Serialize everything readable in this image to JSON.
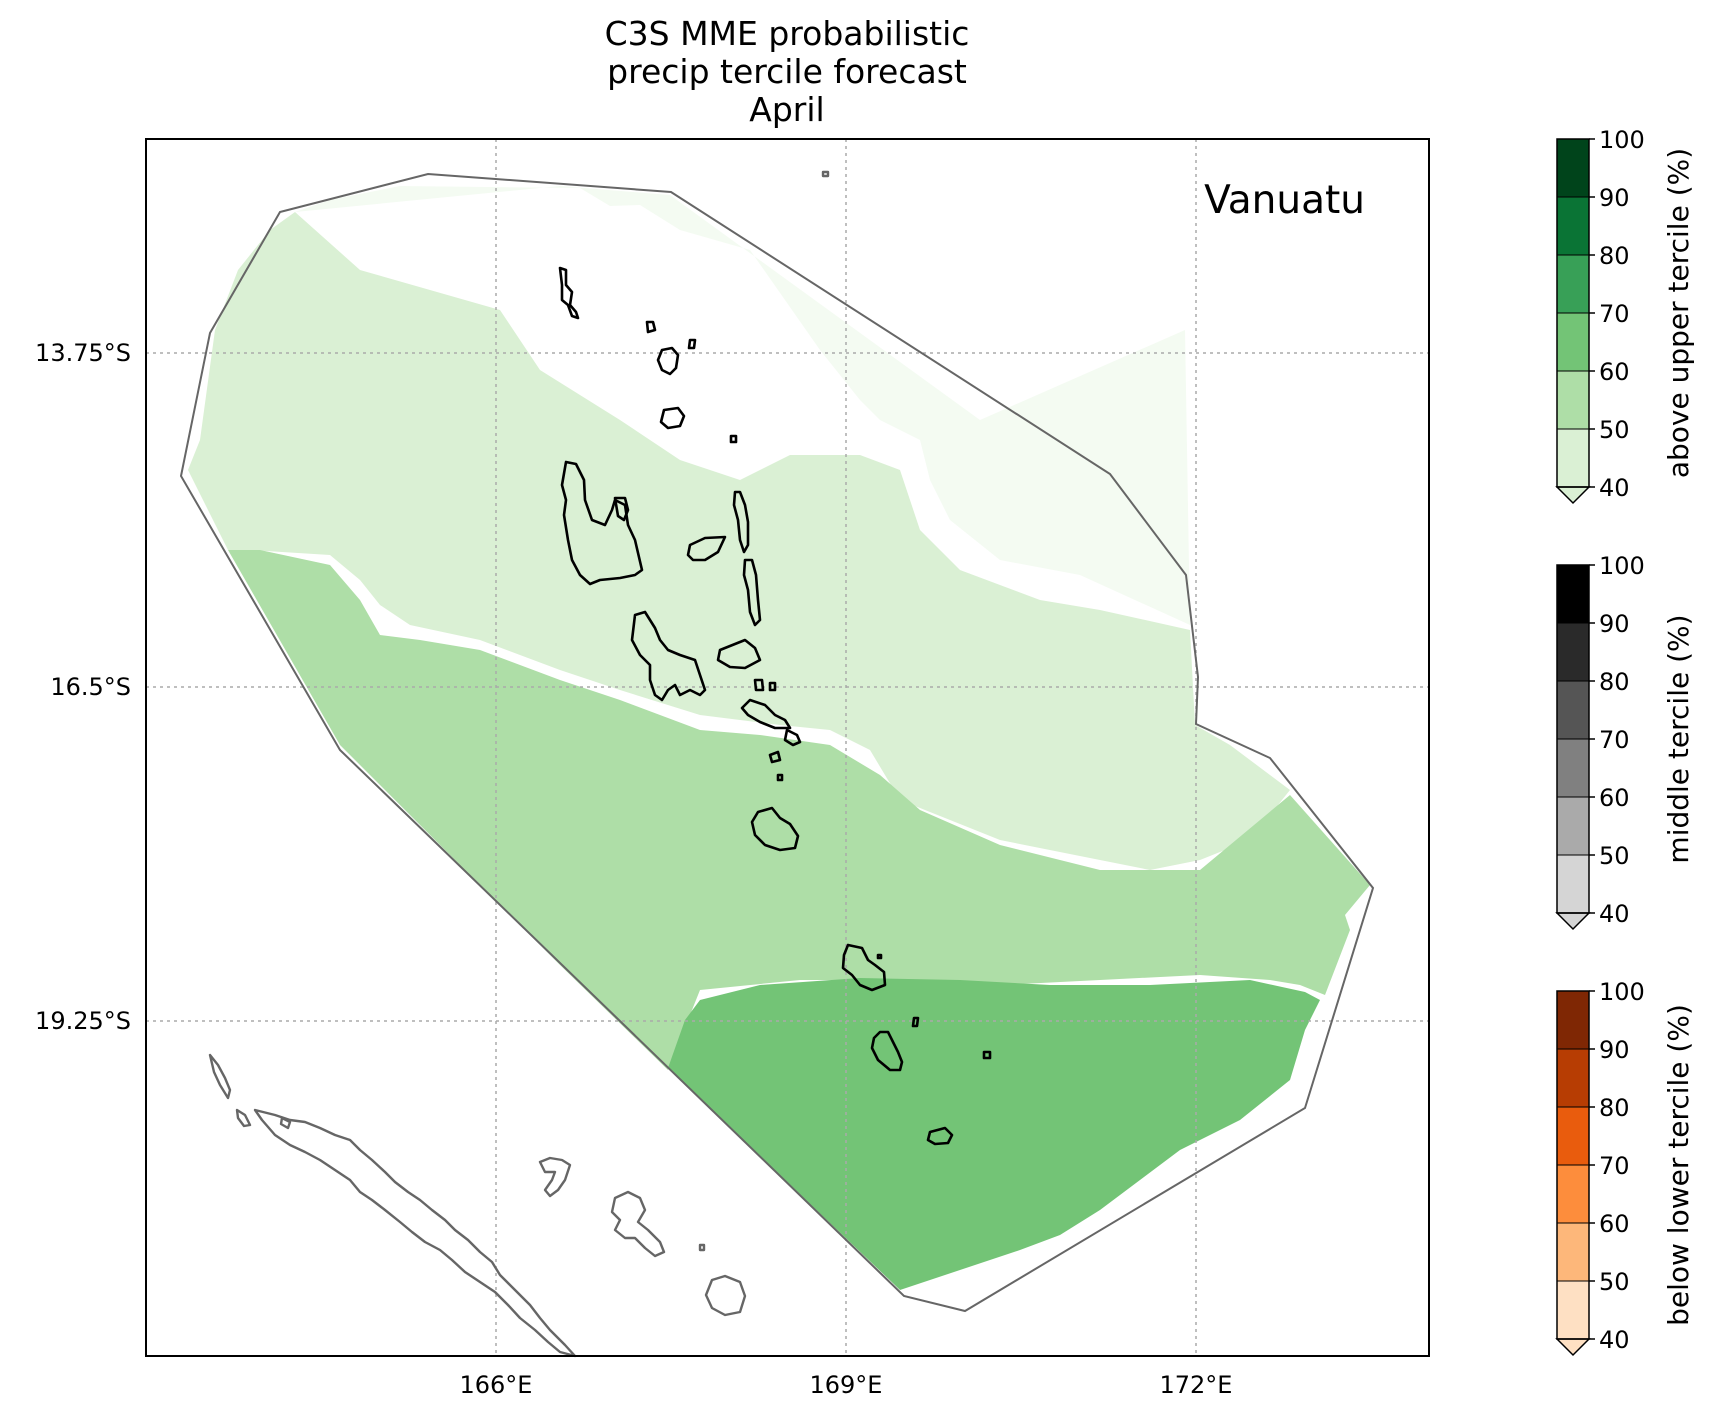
{
  "title_lines": [
    "C3S MME probabilistic",
    "precip tercile forecast",
    "April"
  ],
  "region_label": "Vanuatu",
  "x_ticks": [
    "166°E",
    "169°E",
    "172°E"
  ],
  "y_ticks": [
    "13.75°S",
    "16.5°S",
    "19.25°S"
  ],
  "colorbars": [
    {
      "label": "above upper tercile (%)",
      "ticks": [
        "100",
        "90",
        "80",
        "70",
        "60",
        "50",
        "40"
      ],
      "colors": [
        "#00441b",
        "#0a7435",
        "#38a057",
        "#73c476",
        "#aedea7",
        "#daf0d4"
      ],
      "extend": "min"
    },
    {
      "label": "middle tercile (%)",
      "ticks": [
        "100",
        "90",
        "80",
        "70",
        "60",
        "50",
        "40"
      ],
      "colors": [
        "#000000",
        "#2a2a2a",
        "#555555",
        "#808080",
        "#aaaaaa",
        "#d5d5d5"
      ],
      "extend": "min"
    },
    {
      "label": "below lower tercile (%)",
      "ticks": [
        "100",
        "90",
        "80",
        "70",
        "60",
        "50",
        "40"
      ],
      "colors": [
        "#7f2704",
        "#b73d03",
        "#e95c0d",
        "#fd8d3c",
        "#fdb77a",
        "#fee0c3"
      ],
      "extend": "min"
    }
  ],
  "map_colors": {
    "white_band": "#ffffff",
    "lightest": "#f4fbf2",
    "light": "#daf0d4",
    "mid": "#aedea7",
    "dark": "#73c476",
    "land": "#000000",
    "eez_outline": "#666666"
  }
}
